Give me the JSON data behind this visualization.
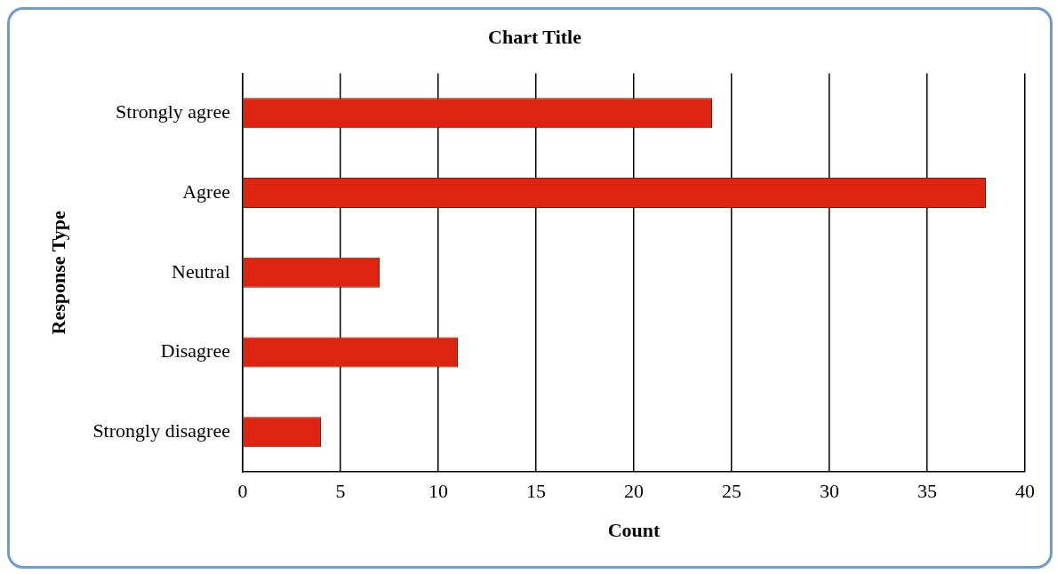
{
  "chart_data": {
    "type": "bar",
    "orientation": "horizontal",
    "title": "Chart Title",
    "xlabel": "Count",
    "ylabel": "Response Type",
    "categories": [
      "Strongly agree",
      "Agree",
      "Neutral",
      "Disagree",
      "Strongly disagree"
    ],
    "values": [
      24,
      38,
      7,
      11,
      4
    ],
    "color": "#dc2410",
    "xlim": [
      0,
      40
    ],
    "xticks": [
      0,
      5,
      10,
      15,
      20,
      25,
      30,
      35,
      40
    ],
    "grid": "x",
    "legend": false
  }
}
